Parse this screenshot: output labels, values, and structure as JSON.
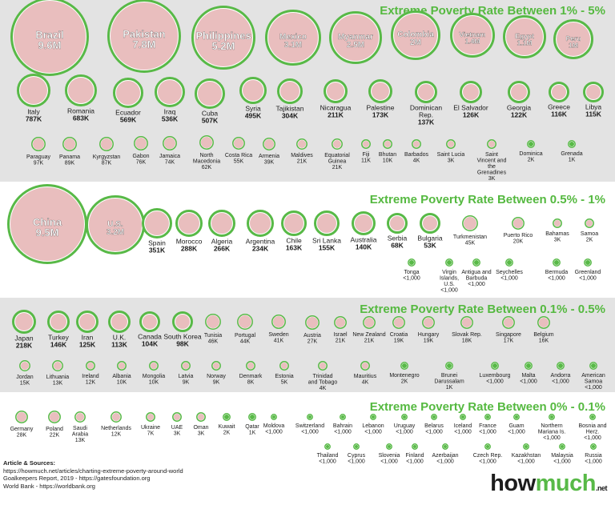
{
  "chart_data": [
    {
      "type": "bubble",
      "title": "Extreme Poverty Rate Between 1% - 5%",
      "points": [
        {
          "label": "Brazil",
          "value": "9.6M",
          "n": 9.6
        },
        {
          "label": "Pakistan",
          "value": "7.8M",
          "n": 7.8
        },
        {
          "label": "Philippines",
          "value": "5.2M",
          "n": 5.2
        },
        {
          "label": "Mexico",
          "value": "3.1M",
          "n": 3.1
        },
        {
          "label": "Myanmar",
          "value": "2.5M",
          "n": 2.5
        },
        {
          "label": "Colombia",
          "value": "2M",
          "n": 2.0
        },
        {
          "label": "Vietnam",
          "value": "1.4M",
          "n": 1.4
        },
        {
          "label": "Egypt",
          "value": "1.1M",
          "n": 1.1
        },
        {
          "label": "Peru",
          "value": "1M",
          "n": 1.0
        },
        {
          "label": "Italy",
          "value": "787K",
          "n": 0.787
        },
        {
          "label": "Romania",
          "value": "683K",
          "n": 0.683
        },
        {
          "label": "Ecuador",
          "value": "569K",
          "n": 0.569
        },
        {
          "label": "Iraq",
          "value": "536K",
          "n": 0.536
        },
        {
          "label": "Cuba",
          "value": "507K",
          "n": 0.507
        },
        {
          "label": "Syria",
          "value": "495K",
          "n": 0.495
        },
        {
          "label": "Tajikistan",
          "value": "304K",
          "n": 0.304
        },
        {
          "label": "Nicaragua",
          "value": "211K",
          "n": 0.211
        },
        {
          "label": "Palestine",
          "value": "173K",
          "n": 0.173
        },
        {
          "label": "Dominican Rep.",
          "value": "137K",
          "n": 0.137
        },
        {
          "label": "El Salvador",
          "value": "126K",
          "n": 0.126
        },
        {
          "label": "Georgia",
          "value": "122K",
          "n": 0.122
        },
        {
          "label": "Greece",
          "value": "116K",
          "n": 0.116
        },
        {
          "label": "Libya",
          "value": "115K",
          "n": 0.115
        },
        {
          "label": "Paraguay",
          "value": "97K",
          "n": 0.097
        },
        {
          "label": "Panama",
          "value": "89K",
          "n": 0.089
        },
        {
          "label": "Kyrgyzstan",
          "value": "87K",
          "n": 0.087
        },
        {
          "label": "Gabon",
          "value": "76K",
          "n": 0.076
        },
        {
          "label": "Jamaica",
          "value": "74K",
          "n": 0.074
        },
        {
          "label": "North Macedonia",
          "value": "62K",
          "n": 0.062
        },
        {
          "label": "Costa Rica",
          "value": "55K",
          "n": 0.055
        },
        {
          "label": "Armenia",
          "value": "39K",
          "n": 0.039
        },
        {
          "label": "Maldives",
          "value": "21K",
          "n": 0.021
        },
        {
          "label": "Equatorial Guinea",
          "value": "21K",
          "n": 0.021
        },
        {
          "label": "Fiji",
          "value": "11K",
          "n": 0.011
        },
        {
          "label": "Bhutan",
          "value": "10K",
          "n": 0.01
        },
        {
          "label": "Barbados",
          "value": "4K",
          "n": 0.004
        },
        {
          "label": "Saint Lucia",
          "value": "3K",
          "n": 0.003
        },
        {
          "label": "Saint Vincent and the Grenadines",
          "value": "3K",
          "n": 0.003
        },
        {
          "label": "Dominica",
          "value": "2K",
          "n": 0.002
        },
        {
          "label": "Grenada",
          "value": "1K",
          "n": 0.001
        }
      ]
    },
    {
      "type": "bubble",
      "title": "Extreme Poverty Rate Between 0.5% - 1%",
      "points": [
        {
          "label": "China",
          "value": "9.5M",
          "n": 9.5
        },
        {
          "label": "U.S.",
          "value": "3.2M",
          "n": 3.2
        },
        {
          "label": "Spain",
          "value": "351K",
          "n": 0.351
        },
        {
          "label": "Morocco",
          "value": "288K",
          "n": 0.288
        },
        {
          "label": "Algeria",
          "value": "266K",
          "n": 0.266
        },
        {
          "label": "Argentina",
          "value": "234K",
          "n": 0.234
        },
        {
          "label": "Chile",
          "value": "163K",
          "n": 0.163
        },
        {
          "label": "Sri Lanka",
          "value": "155K",
          "n": 0.155
        },
        {
          "label": "Australia",
          "value": "140K",
          "n": 0.14
        },
        {
          "label": "Serbia",
          "value": "68K",
          "n": 0.068
        },
        {
          "label": "Bulgaria",
          "value": "53K",
          "n": 0.053
        },
        {
          "label": "Turkmenistan",
          "value": "45K",
          "n": 0.045
        },
        {
          "label": "Puerto Rico",
          "value": "20K",
          "n": 0.02
        },
        {
          "label": "Bahamas",
          "value": "3K",
          "n": 0.003
        },
        {
          "label": "Samoa",
          "value": "2K",
          "n": 0.002
        },
        {
          "label": "Tonga",
          "value": "<1,000",
          "n": 0
        },
        {
          "label": "Virgin Islands, U.S.",
          "value": "<1,000",
          "n": 0
        },
        {
          "label": "Antigua and Barbuda",
          "value": "<1,000",
          "n": 0
        },
        {
          "label": "Seychelles",
          "value": "<1,000",
          "n": 0
        },
        {
          "label": "Bermuda",
          "value": "<1,000",
          "n": 0
        },
        {
          "label": "Greenland",
          "value": "<1,000",
          "n": 0
        }
      ]
    },
    {
      "type": "bubble",
      "title": "Extreme Poverty Rate Between 0.1% - 0.5%",
      "points": [
        {
          "label": "Japan",
          "value": "218K",
          "n": 0.218
        },
        {
          "label": "Turkey",
          "value": "146K",
          "n": 0.146
        },
        {
          "label": "Iran",
          "value": "125K",
          "n": 0.125
        },
        {
          "label": "U.K.",
          "value": "113K",
          "n": 0.113
        },
        {
          "label": "Canada",
          "value": "104K",
          "n": 0.104
        },
        {
          "label": "South Korea",
          "value": "98K",
          "n": 0.098
        },
        {
          "label": "Tunisia",
          "value": "46K",
          "n": 0.046
        },
        {
          "label": "Portugal",
          "value": "44K",
          "n": 0.044
        },
        {
          "label": "Sweden",
          "value": "41K",
          "n": 0.041
        },
        {
          "label": "Austria",
          "value": "27K",
          "n": 0.027
        },
        {
          "label": "Israel",
          "value": "21K",
          "n": 0.021
        },
        {
          "label": "New Zealand",
          "value": "21K",
          "n": 0.021
        },
        {
          "label": "Croatia",
          "value": "19K",
          "n": 0.019
        },
        {
          "label": "Hungary",
          "value": "19K",
          "n": 0.019
        },
        {
          "label": "Slovak Rep.",
          "value": "18K",
          "n": 0.018
        },
        {
          "label": "Singapore",
          "value": "17K",
          "n": 0.017
        },
        {
          "label": "Belgium",
          "value": "16K",
          "n": 0.016
        },
        {
          "label": "Jordan",
          "value": "15K",
          "n": 0.015
        },
        {
          "label": "Lithuania",
          "value": "13K",
          "n": 0.013
        },
        {
          "label": "Ireland",
          "value": "12K",
          "n": 0.012
        },
        {
          "label": "Albania",
          "value": "10K",
          "n": 0.01
        },
        {
          "label": "Mongolia",
          "value": "10K",
          "n": 0.01
        },
        {
          "label": "Latvia",
          "value": "9K",
          "n": 0.009
        },
        {
          "label": "Norway",
          "value": "9K",
          "n": 0.009
        },
        {
          "label": "Denmark",
          "value": "8K",
          "n": 0.008
        },
        {
          "label": "Estonia",
          "value": "5K",
          "n": 0.005
        },
        {
          "label": "Trinidad and Tobago",
          "value": "4K",
          "n": 0.004
        },
        {
          "label": "Mauritius",
          "value": "4K",
          "n": 0.004
        },
        {
          "label": "Montenegro",
          "value": "2K",
          "n": 0.002
        },
        {
          "label": "Brunei Darussalam",
          "value": "1K",
          "n": 0.001
        },
        {
          "label": "Luxembourg",
          "value": "<1,000",
          "n": 0
        },
        {
          "label": "Malta",
          "value": "<1,000",
          "n": 0
        },
        {
          "label": "Andorra",
          "value": "<1,000",
          "n": 0
        },
        {
          "label": "American Samoa",
          "value": "<1,000",
          "n": 0
        }
      ]
    },
    {
      "type": "bubble",
      "title": "Extreme Poverty Rate Between 0% - 0.1%",
      "points": [
        {
          "label": "Germany",
          "value": "28K",
          "n": 0.028
        },
        {
          "label": "Poland",
          "value": "22K",
          "n": 0.022
        },
        {
          "label": "Saudi Arabia",
          "value": "13K",
          "n": 0.013
        },
        {
          "label": "Netherlands",
          "value": "12K",
          "n": 0.012
        },
        {
          "label": "Ukraine",
          "value": "7K",
          "n": 0.007
        },
        {
          "label": "UAE",
          "value": "3K",
          "n": 0.003
        },
        {
          "label": "Oman",
          "value": "3K",
          "n": 0.003
        },
        {
          "label": "Kuwait",
          "value": "2K",
          "n": 0.002
        },
        {
          "label": "Qatar",
          "value": "1K",
          "n": 0.001
        },
        {
          "label": "Moldova",
          "value": "<1,000",
          "n": 0
        },
        {
          "label": "Switzerland",
          "value": "<1,000",
          "n": 0
        },
        {
          "label": "Bahrain",
          "value": "<1,000",
          "n": 0
        },
        {
          "label": "Lebanon",
          "value": "<1,000",
          "n": 0
        },
        {
          "label": "Uruguay",
          "value": "<1,000",
          "n": 0
        },
        {
          "label": "Belarus",
          "value": "<1,000",
          "n": 0
        },
        {
          "label": "Iceland",
          "value": "<1,000",
          "n": 0
        },
        {
          "label": "France",
          "value": "<1,000",
          "n": 0
        },
        {
          "label": "Guam",
          "value": "<1,000",
          "n": 0
        },
        {
          "label": "Northern Mariana Is.",
          "value": "<1,000",
          "n": 0
        },
        {
          "label": "Bosnia and Herz.",
          "value": "<1,000",
          "n": 0
        },
        {
          "label": "Thailand",
          "value": "<1,000",
          "n": 0
        },
        {
          "label": "Cyprus",
          "value": "<1,000",
          "n": 0
        },
        {
          "label": "Slovenia",
          "value": "<1,000",
          "n": 0
        },
        {
          "label": "Finland",
          "value": "<1,000",
          "n": 0
        },
        {
          "label": "Azerbaijan",
          "value": "<1,000",
          "n": 0
        },
        {
          "label": "Czech Rep.",
          "value": "<1,000",
          "n": 0
        },
        {
          "label": "Kazakhstan",
          "value": "<1,000",
          "n": 0
        },
        {
          "label": "Malaysia",
          "value": "<1,000",
          "n": 0
        },
        {
          "label": "Russia",
          "value": "<1,000",
          "n": 0
        }
      ]
    }
  ],
  "sources": {
    "header": "Article & Sources:",
    "lines": [
      "https://howmuch.net/articles/charting-extreme-poverty-around-world",
      "Goalkeepers Report, 2019 - https://gatesfoundation.org",
      "World Bank - https://worldbank.org"
    ]
  },
  "logo": {
    "how": "how",
    "much": "much",
    "net": ".net"
  },
  "colors": {
    "accent": "#58b947",
    "band_gray": "#e3e3e3",
    "ring": "#58b947",
    "bubble_fill": "#e9bebe"
  }
}
